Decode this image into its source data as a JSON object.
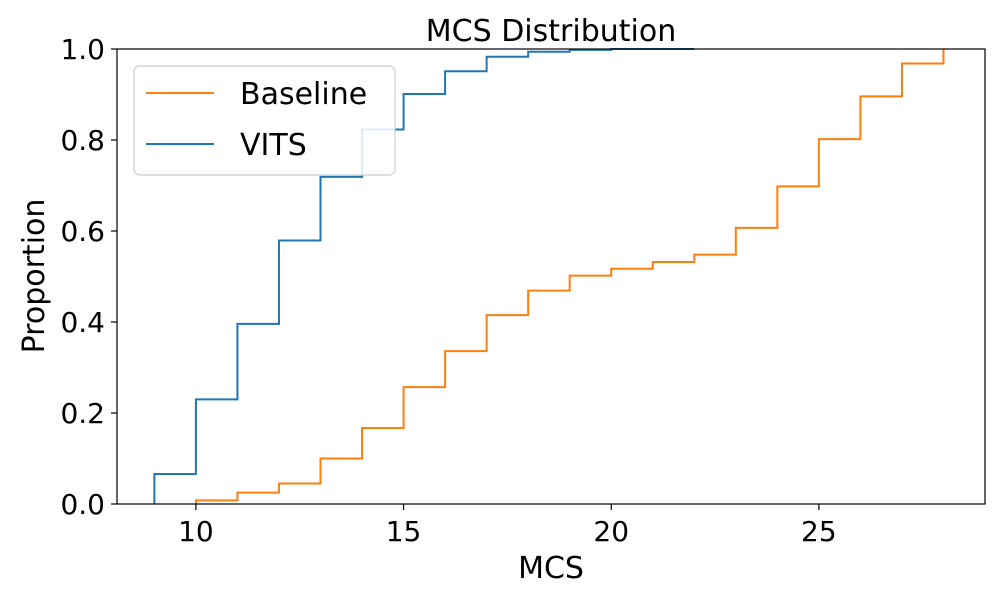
{
  "chart_data": {
    "type": "line",
    "subtype": "ecdf-step",
    "title": "MCS Distribution",
    "xlabel": "MCS",
    "ylabel": "Proportion",
    "xlim": [
      8.1,
      29.0
    ],
    "ylim": [
      0.0,
      1.0
    ],
    "xticks": [
      10,
      15,
      20,
      25
    ],
    "yticks": [
      0.0,
      0.2,
      0.4,
      0.6,
      0.8,
      1.0
    ],
    "grid": false,
    "legend": {
      "position": "top-left"
    },
    "series": [
      {
        "name": "Baseline",
        "color": "#ff7f0e",
        "x": [
          10,
          11,
          12,
          13,
          14,
          15,
          16,
          17,
          18,
          19,
          20,
          21,
          22,
          23,
          24,
          25,
          26,
          27,
          28
        ],
        "y": [
          0.008,
          0.025,
          0.045,
          0.1,
          0.167,
          0.257,
          0.336,
          0.415,
          0.469,
          0.502,
          0.517,
          0.532,
          0.548,
          0.607,
          0.698,
          0.802,
          0.896,
          0.968,
          1.0
        ]
      },
      {
        "name": "VITS",
        "color": "#1f77b4",
        "x": [
          9,
          10,
          11,
          12,
          13,
          14,
          15,
          16,
          17,
          18,
          19,
          20,
          22
        ],
        "y": [
          0.066,
          0.23,
          0.396,
          0.579,
          0.719,
          0.823,
          0.901,
          0.951,
          0.983,
          0.994,
          0.998,
          1.0,
          1.0
        ]
      }
    ]
  }
}
